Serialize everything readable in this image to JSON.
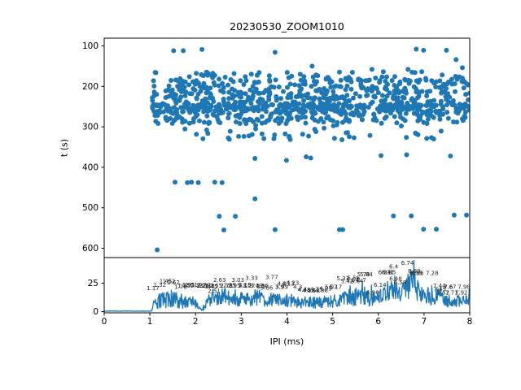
{
  "figure": {
    "title": "20230530_ZOOM1010",
    "background_color": "#ffffff",
    "accent_color": "#1f77b4",
    "spine_color": "#000000",
    "annotation_color": "#262626"
  },
  "top_plot": {
    "ylabel": "t (s)",
    "y_ticks": [
      100,
      200,
      300,
      400,
      500,
      600
    ],
    "y_range": [
      81,
      623
    ],
    "x_range": [
      0,
      8
    ],
    "y_inverted": true
  },
  "bottom_plot": {
    "xlabel": "IPI (ms)",
    "x_ticks": [
      0,
      1,
      2,
      3,
      4,
      5,
      6,
      7,
      8
    ],
    "y_ticks": [
      0,
      25
    ],
    "y_range": [
      -1,
      47.5
    ],
    "x_range": [
      0,
      8
    ]
  },
  "render_seed": 7,
  "chart_data": [
    {
      "type": "scatter",
      "name": "pulse-times-vs-ipi",
      "xlabel": "IPI (ms)",
      "ylabel": "t (s)",
      "marker_color": "#1f77b4",
      "marker_diameter_px": 6,
      "bands": [
        {
          "x": [
            1.05,
            8.0
          ],
          "t": [
            165,
            186
          ],
          "count": 70
        },
        {
          "x": [
            1.05,
            8.0
          ],
          "t": [
            184,
            246
          ],
          "count": 390
        },
        {
          "x": [
            1.05,
            8.0
          ],
          "t": [
            244,
            263
          ],
          "count": 300
        },
        {
          "x": [
            1.1,
            8.0
          ],
          "t": [
            262,
            292
          ],
          "count": 190
        },
        {
          "x": [
            1.3,
            7.9
          ],
          "t": [
            294,
            312
          ],
          "count": 12
        },
        {
          "x": [
            1.4,
            7.9
          ],
          "t": [
            314,
            332
          ],
          "count": 33
        }
      ],
      "outliers": [
        [
          1.52,
          112
        ],
        [
          1.73,
          112
        ],
        [
          2.14,
          109
        ],
        [
          3.74,
          116
        ],
        [
          6.83,
          108
        ],
        [
          6.99,
          111
        ],
        [
          7.49,
          111
        ],
        [
          7.7,
          134
        ],
        [
          5.86,
          158
        ],
        [
          6.11,
          164
        ],
        [
          6.65,
          158
        ],
        [
          6.95,
          164
        ],
        [
          7.84,
          154
        ],
        [
          4.55,
          150
        ],
        [
          5.15,
          165
        ],
        [
          3.3,
          378
        ],
        [
          4.42,
          374
        ],
        [
          4.52,
          377
        ],
        [
          6.06,
          371
        ],
        [
          6.62,
          369
        ],
        [
          7.58,
          372
        ],
        [
          3.99,
          383
        ],
        [
          1.55,
          437
        ],
        [
          1.82,
          438
        ],
        [
          1.91,
          437
        ],
        [
          2.06,
          438
        ],
        [
          2.42,
          437
        ],
        [
          2.58,
          438
        ],
        [
          3.3,
          478
        ],
        [
          2.52,
          521
        ],
        [
          2.87,
          521
        ],
        [
          6.33,
          520
        ],
        [
          6.72,
          520
        ],
        [
          7.66,
          518
        ],
        [
          7.93,
          518
        ],
        [
          2.62,
          555
        ],
        [
          3.74,
          554
        ],
        [
          5.15,
          554
        ],
        [
          5.22,
          554
        ],
        [
          6.99,
          553
        ],
        [
          7.27,
          553
        ],
        [
          1.16,
          604
        ]
      ]
    },
    {
      "type": "line",
      "name": "ipi-histogram-trace",
      "line_color": "#1f77b4",
      "line_width": 1.3,
      "flat_until_x": 1.05,
      "flat_value": 0.5,
      "sample_step": 0.01,
      "envelope": [
        [
          0.0,
          0.5,
          0.2
        ],
        [
          1.0,
          0.5,
          0.2
        ],
        [
          1.05,
          2,
          1.5
        ],
        [
          1.1,
          8,
          6
        ],
        [
          1.3,
          10,
          7
        ],
        [
          1.5,
          12,
          8
        ],
        [
          1.7,
          9,
          7
        ],
        [
          1.9,
          11,
          7
        ],
        [
          2.05,
          4,
          3
        ],
        [
          2.15,
          2,
          1.5
        ],
        [
          2.3,
          11,
          6
        ],
        [
          2.5,
          12,
          6
        ],
        [
          2.63,
          14,
          7
        ],
        [
          2.8,
          10,
          6
        ],
        [
          3.0,
          12,
          7
        ],
        [
          3.2,
          11,
          6
        ],
        [
          3.35,
          13,
          8
        ],
        [
          3.5,
          10,
          6
        ],
        [
          3.7,
          11,
          7
        ],
        [
          3.9,
          9,
          6
        ],
        [
          4.1,
          10,
          6
        ],
        [
          4.3,
          8,
          5
        ],
        [
          4.5,
          8,
          6
        ],
        [
          4.7,
          8,
          5
        ],
        [
          4.9,
          9,
          6
        ],
        [
          5.1,
          10,
          6
        ],
        [
          5.3,
          13,
          7
        ],
        [
          5.5,
          13,
          8
        ],
        [
          5.7,
          13,
          8
        ],
        [
          5.9,
          11,
          6
        ],
        [
          6.1,
          14,
          7
        ],
        [
          6.3,
          18,
          9
        ],
        [
          6.5,
          17,
          9
        ],
        [
          6.65,
          22,
          12
        ],
        [
          6.74,
          30,
          13
        ],
        [
          6.85,
          20,
          10
        ],
        [
          7.0,
          15,
          8
        ],
        [
          7.2,
          14,
          9
        ],
        [
          7.35,
          12,
          7
        ],
        [
          7.5,
          9,
          5
        ],
        [
          7.7,
          9,
          6
        ],
        [
          7.9,
          10,
          6
        ],
        [
          8.0,
          12,
          5
        ]
      ],
      "annotations": [
        {
          "x": 1.17,
          "y": 19,
          "label": "1.17"
        },
        {
          "x": 1.32,
          "y": 22,
          "label": "1.32"
        },
        {
          "x": 1.45,
          "y": 25,
          "label": "1.45"
        },
        {
          "x": 1.52,
          "y": 25,
          "label": "1.52"
        },
        {
          "x": 1.62,
          "y": 24,
          "label": "1.62"
        },
        {
          "x": 1.78,
          "y": 20,
          "label": "1.78"
        },
        {
          "x": 1.85,
          "y": 21,
          "label": "1.85"
        },
        {
          "x": 1.95,
          "y": 22,
          "label": "1.95"
        },
        {
          "x": 2.01,
          "y": 22,
          "label": "2.01"
        },
        {
          "x": 2.13,
          "y": 21,
          "label": "2.13"
        },
        {
          "x": 2.2,
          "y": 21.5,
          "label": "2.2"
        },
        {
          "x": 2.26,
          "y": 21,
          "label": "2.26"
        },
        {
          "x": 2.31,
          "y": 21.5,
          "label": "2.31"
        },
        {
          "x": 2.38,
          "y": 21,
          "label": "2.38"
        },
        {
          "x": 2.45,
          "y": 20.5,
          "label": "2.45"
        },
        {
          "x": 2.51,
          "y": 16.5,
          "label": "2.51"
        },
        {
          "x": 2.55,
          "y": 21,
          "label": "2.55"
        },
        {
          "x": 2.63,
          "y": 26,
          "label": "2.63"
        },
        {
          "x": 2.7,
          "y": 21,
          "label": "2.7"
        },
        {
          "x": 2.78,
          "y": 21,
          "label": "2.78"
        },
        {
          "x": 2.85,
          "y": 21.5,
          "label": "2.85"
        },
        {
          "x": 2.95,
          "y": 21,
          "label": "2.95"
        },
        {
          "x": 3.03,
          "y": 26,
          "label": "3.03"
        },
        {
          "x": 3.1,
          "y": 21,
          "label": "3.1"
        },
        {
          "x": 3.18,
          "y": 22,
          "label": "3.18"
        },
        {
          "x": 3.27,
          "y": 21,
          "label": "3.27"
        },
        {
          "x": 3.33,
          "y": 28,
          "label": "3.33"
        },
        {
          "x": 3.43,
          "y": 21,
          "label": "3.43"
        },
        {
          "x": 3.5,
          "y": 20.5,
          "label": "3.5"
        },
        {
          "x": 3.56,
          "y": 21,
          "label": "3.56"
        },
        {
          "x": 3.66,
          "y": 19.5,
          "label": "3.66"
        },
        {
          "x": 3.77,
          "y": 28.5,
          "label": "3.77"
        },
        {
          "x": 3.9,
          "y": 20,
          "label": "3.9"
        },
        {
          "x": 3.99,
          "y": 20,
          "label": "3.99"
        },
        {
          "x": 4.03,
          "y": 23,
          "label": "4.03"
        },
        {
          "x": 4.13,
          "y": 23,
          "label": "4.13"
        },
        {
          "x": 4.23,
          "y": 23.5,
          "label": "4.23"
        },
        {
          "x": 4.3,
          "y": 20,
          "label": "4.3"
        },
        {
          "x": 4.4,
          "y": 18,
          "label": "4.4"
        },
        {
          "x": 4.48,
          "y": 17.5,
          "label": "4.48"
        },
        {
          "x": 4.58,
          "y": 17,
          "label": "4.58"
        },
        {
          "x": 4.68,
          "y": 17,
          "label": "4.68"
        },
        {
          "x": 4.75,
          "y": 18,
          "label": "4.75"
        },
        {
          "x": 4.86,
          "y": 17,
          "label": "4.86"
        },
        {
          "x": 4.95,
          "y": 18.5,
          "label": "4.95"
        },
        {
          "x": 5.07,
          "y": 20,
          "label": "5.07"
        },
        {
          "x": 5.17,
          "y": 20,
          "label": "5.17"
        },
        {
          "x": 5.33,
          "y": 27.5,
          "label": "5.33"
        },
        {
          "x": 5.42,
          "y": 25,
          "label": "5.42"
        },
        {
          "x": 5.54,
          "y": 26,
          "label": "5.54"
        },
        {
          "x": 5.56,
          "y": 28,
          "label": "5.56"
        },
        {
          "x": 5.64,
          "y": 25,
          "label": "5.64"
        },
        {
          "x": 5.7,
          "y": 26,
          "label": "5.7"
        },
        {
          "x": 5.78,
          "y": 31,
          "label": "5.78"
        },
        {
          "x": 5.84,
          "y": 31,
          "label": "5.84"
        },
        {
          "x": 5.98,
          "y": 15,
          "label": "5.98"
        },
        {
          "x": 6.14,
          "y": 22,
          "label": "6.14"
        },
        {
          "x": 6.24,
          "y": 33,
          "label": "6.24"
        },
        {
          "x": 6.31,
          "y": 33,
          "label": "6.31"
        },
        {
          "x": 6.35,
          "y": 33,
          "label": "6.35"
        },
        {
          "x": 6.4,
          "y": 38,
          "label": "6.4"
        },
        {
          "x": 6.48,
          "y": 27,
          "label": "6.48"
        },
        {
          "x": 6.58,
          "y": 24,
          "label": "6.58"
        },
        {
          "x": 6.74,
          "y": 41,
          "label": "6.74"
        },
        {
          "x": 6.89,
          "y": 34,
          "label": "6.89"
        },
        {
          "x": 6.93,
          "y": 32,
          "label": "6.93"
        },
        {
          "x": 6.96,
          "y": 32,
          "label": "6.96"
        },
        {
          "x": 7.28,
          "y": 32,
          "label": "7.28"
        },
        {
          "x": 7.44,
          "y": 21,
          "label": "7.44"
        },
        {
          "x": 7.45,
          "y": 18,
          "label": "7.45"
        },
        {
          "x": 7.52,
          "y": 15,
          "label": "7.52"
        },
        {
          "x": 7.6,
          "y": 20,
          "label": "7.6"
        },
        {
          "x": 7.67,
          "y": 20,
          "label": "7.67"
        },
        {
          "x": 7.71,
          "y": 15,
          "label": "7.71"
        },
        {
          "x": 7.92,
          "y": 15,
          "label": "7.92"
        },
        {
          "x": 7.98,
          "y": 20,
          "label": "7.98"
        }
      ]
    }
  ]
}
